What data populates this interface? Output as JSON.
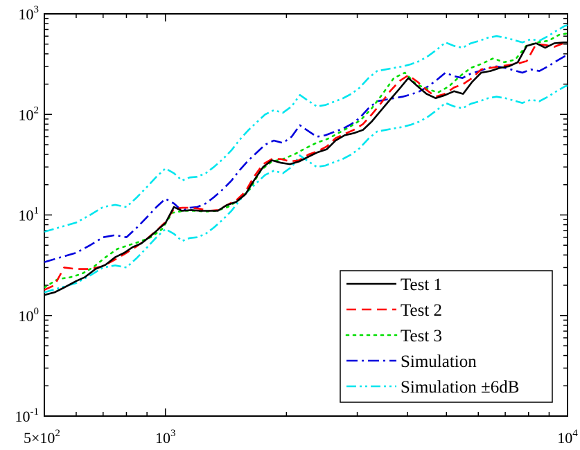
{
  "chart_data": {
    "type": "line",
    "title": "",
    "xlabel": "",
    "ylabel": "",
    "xscale": "log",
    "yscale": "log",
    "xlim": [
      500,
      10000
    ],
    "ylim": [
      0.1,
      1000
    ],
    "grid": false,
    "legend_position": "bottom-right",
    "x_ticks": [
      {
        "value": 500,
        "base": "5×10",
        "exp": "2"
      },
      {
        "value": 1000,
        "base": "10",
        "exp": "3"
      },
      {
        "value": 10000,
        "base": "10",
        "exp": "4"
      }
    ],
    "y_ticks": [
      {
        "value": 0.1,
        "base": "10",
        "exp": "-1"
      },
      {
        "value": 1,
        "base": "10",
        "exp": "0"
      },
      {
        "value": 10,
        "base": "10",
        "exp": "1"
      },
      {
        "value": 100,
        "base": "10",
        "exp": "2"
      },
      {
        "value": 1000,
        "base": "10",
        "exp": "3"
      }
    ],
    "series": [
      {
        "name": "Test 1",
        "color": "#000000",
        "dash": "solid",
        "x": [
          500,
          530,
          560,
          600,
          630,
          670,
          710,
          750,
          790,
          830,
          870,
          920,
          960,
          1000,
          1050,
          1100,
          1160,
          1220,
          1280,
          1350,
          1420,
          1500,
          1580,
          1660,
          1750,
          1840,
          1940,
          2040,
          2150,
          2270,
          2390,
          2520,
          2650,
          2790,
          2940,
          3100,
          3260,
          3440,
          3620,
          3820,
          4020,
          4240,
          4460,
          4700,
          4950,
          5220,
          5500,
          5790,
          6100,
          6430,
          6780,
          7140,
          7520,
          7920,
          8350,
          8800,
          9270,
          9770,
          10000
        ],
        "y": [
          1.6,
          1.7,
          1.9,
          2.2,
          2.4,
          2.9,
          3.2,
          3.8,
          4.2,
          4.8,
          5.2,
          6.2,
          7.2,
          8.3,
          12.0,
          11.0,
          11.2,
          11.0,
          11.0,
          11.0,
          12.5,
          13.5,
          16.0,
          22.0,
          30.0,
          35.0,
          33.0,
          32.0,
          34.0,
          38.0,
          42.0,
          45.0,
          55.0,
          62.0,
          65.0,
          70.0,
          85.0,
          110.0,
          140.0,
          180.0,
          230.0,
          190.0,
          160.0,
          145.0,
          155.0,
          170.0,
          160.0,
          210.0,
          260.0,
          270.0,
          290.0,
          300.0,
          330.0,
          480.0,
          510.0,
          460.0,
          510.0,
          520.0,
          520.0
        ]
      },
      {
        "name": "Test 2",
        "color": "#ff0000",
        "dash": "dashed",
        "x": [
          500,
          530,
          560,
          600,
          650,
          700,
          750,
          800,
          850,
          900,
          950,
          1000,
          1050,
          1100,
          1160,
          1220,
          1280,
          1350,
          1420,
          1500,
          1580,
          1660,
          1750,
          1840,
          1940,
          2040,
          2150,
          2270,
          2390,
          2520,
          2650,
          2790,
          2940,
          3100,
          3260,
          3440,
          3620,
          3820,
          4020,
          4240,
          4460,
          4700,
          4950,
          5220,
          5500,
          5790,
          6100,
          6430,
          6780,
          7140,
          7520,
          7920,
          8350,
          8800,
          9270,
          9770,
          10000
        ],
        "y": [
          1.8,
          2.0,
          3.0,
          2.9,
          2.9,
          3.1,
          3.6,
          4.2,
          4.9,
          5.8,
          7.0,
          8.5,
          11.5,
          11.8,
          11.8,
          11.5,
          11.0,
          11.2,
          12.5,
          14.0,
          17.0,
          24.0,
          32.0,
          36.0,
          36.0,
          34.0,
          35.0,
          40.0,
          43.0,
          48.0,
          58.0,
          64.0,
          70.0,
          80.0,
          100.0,
          130.0,
          170.0,
          215.0,
          245.0,
          210.0,
          175.0,
          150.0,
          160.0,
          185.0,
          200.0,
          230.0,
          280.0,
          290.0,
          300.0,
          310.0,
          320.0,
          340.0,
          500.0,
          490.0,
          470.0,
          510.0,
          520.0
        ]
      },
      {
        "name": "Test 3",
        "color": "#00dd00",
        "dash": "dotted",
        "x": [
          500,
          540,
          580,
          620,
          660,
          710,
          760,
          810,
          860,
          920,
          980,
          1040,
          1110,
          1180,
          1260,
          1340,
          1430,
          1520,
          1620,
          1730,
          1840,
          1960,
          2090,
          2230,
          2370,
          2530,
          2690,
          2870,
          3060,
          3260,
          3470,
          3700,
          3940,
          4200,
          4470,
          4760,
          5070,
          5400,
          5750,
          6130,
          6530,
          6960,
          7410,
          7890,
          8410,
          8960,
          9540,
          10000
        ],
        "y": [
          1.9,
          2.3,
          2.4,
          2.6,
          3.0,
          3.8,
          4.6,
          5.0,
          5.4,
          6.0,
          7.2,
          10.5,
          11.0,
          11.0,
          10.8,
          11.0,
          12.0,
          14.0,
          18.0,
          28.0,
          34.0,
          36.0,
          40.0,
          46.0,
          52.0,
          57.0,
          65.0,
          75.0,
          88.0,
          115.0,
          160.0,
          230.0,
          260.0,
          200.0,
          180.0,
          165.0,
          190.0,
          240.0,
          290.0,
          320.0,
          360.0,
          330.0,
          350.0,
          480.0,
          520.0,
          540.0,
          620.0,
          640.0
        ]
      },
      {
        "name": "Simulation",
        "color": "#0000dd",
        "dash": "dashdot",
        "x": [
          500,
          550,
          600,
          650,
          700,
          750,
          800,
          850,
          900,
          950,
          1000,
          1050,
          1100,
          1150,
          1200,
          1260,
          1320,
          1390,
          1460,
          1530,
          1610,
          1690,
          1770,
          1860,
          1960,
          2060,
          2160,
          2270,
          2380,
          2500,
          2630,
          2760,
          2900,
          3040,
          3200,
          3360,
          3530,
          3700,
          3890,
          4080,
          4290,
          4500,
          4730,
          4970,
          5220,
          5480,
          5750,
          6040,
          6350,
          6660,
          7000,
          7350,
          7720,
          8110,
          8510,
          8940,
          9390,
          9860,
          10000
        ],
        "y": [
          3.4,
          3.8,
          4.2,
          5.0,
          6.0,
          6.3,
          6.0,
          7.5,
          9.5,
          12.0,
          14.5,
          13.0,
          11.0,
          11.8,
          12.0,
          13.0,
          15.0,
          18.0,
          22.0,
          28.0,
          35.0,
          42.0,
          50.0,
          55.0,
          52.0,
          60.0,
          78.0,
          68.0,
          60.0,
          62.0,
          67.0,
          72.0,
          80.0,
          92.0,
          115.0,
          135.0,
          140.0,
          145.0,
          150.0,
          158.0,
          170.0,
          190.0,
          220.0,
          260.0,
          240.0,
          230.0,
          255.0,
          270.0,
          290.0,
          300.0,
          290.0,
          275.0,
          260.0,
          280.0,
          270.0,
          300.0,
          340.0,
          380.0,
          385.0
        ]
      },
      {
        "name": "Simulation ±6dB",
        "color": "#00e5ee",
        "dash": "dashdotdot",
        "x": [
          500,
          550,
          600,
          650,
          700,
          750,
          800,
          850,
          900,
          950,
          1000,
          1050,
          1100,
          1150,
          1200,
          1260,
          1320,
          1390,
          1460,
          1530,
          1610,
          1690,
          1770,
          1860,
          1960,
          2060,
          2160,
          2270,
          2380,
          2500,
          2630,
          2760,
          2900,
          3040,
          3200,
          3360,
          3530,
          3700,
          3890,
          4080,
          4290,
          4500,
          4730,
          4970,
          5220,
          5480,
          5750,
          6040,
          6350,
          6660,
          7000,
          7350,
          7720,
          8110,
          8510,
          8940,
          9390,
          9860,
          10000
        ],
        "y": [
          6.8,
          7.6,
          8.4,
          10.0,
          12.0,
          12.6,
          12.0,
          15.0,
          19.0,
          24.0,
          29.0,
          26.0,
          22.0,
          23.6,
          24.0,
          26.0,
          30.0,
          36.0,
          44.0,
          56.0,
          70.0,
          84.0,
          100.0,
          110.0,
          104.0,
          120.0,
          156.0,
          136.0,
          120.0,
          124.0,
          134.0,
          144.0,
          160.0,
          184.0,
          230.0,
          270.0,
          280.0,
          290.0,
          300.0,
          316.0,
          340.0,
          380.0,
          440.0,
          520.0,
          480.0,
          460.0,
          510.0,
          540.0,
          580.0,
          600.0,
          580.0,
          550.0,
          520.0,
          560.0,
          540.0,
          600.0,
          680.0,
          760.0,
          770.0
        ],
        "y_lower": [
          1.7,
          1.9,
          2.1,
          2.5,
          3.0,
          3.15,
          3.0,
          3.75,
          4.75,
          6.0,
          7.25,
          6.5,
          5.5,
          5.9,
          6.0,
          6.5,
          7.5,
          9.0,
          11.0,
          14.0,
          17.5,
          21.0,
          25.0,
          27.5,
          26.0,
          30.0,
          39.0,
          34.0,
          30.0,
          31.0,
          33.5,
          36.0,
          40.0,
          46.0,
          57.5,
          67.5,
          70.0,
          72.5,
          75.0,
          79.0,
          85.0,
          95.0,
          110.0,
          130.0,
          120.0,
          115.0,
          127.5,
          135.0,
          145.0,
          150.0,
          145.0,
          137.5,
          130.0,
          140.0,
          135.0,
          150.0,
          170.0,
          190.0,
          192.5
        ]
      }
    ]
  }
}
